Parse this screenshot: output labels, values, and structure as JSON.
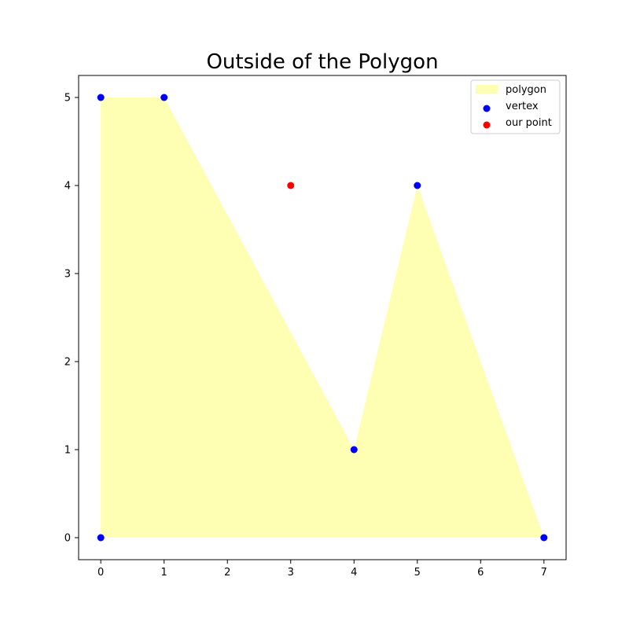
{
  "chart_data": {
    "type": "scatter",
    "title": "Outside of the Polygon",
    "xlabel": "",
    "ylabel": "",
    "xlim": [
      -0.35,
      7.35
    ],
    "ylim": [
      -0.25,
      5.25
    ],
    "x_ticks": [
      0,
      1,
      2,
      3,
      4,
      5,
      6,
      7
    ],
    "y_ticks": [
      0,
      1,
      2,
      3,
      4,
      5
    ],
    "grid": false,
    "legend_position": "top-right",
    "series": [
      {
        "name": "polygon",
        "kind": "polygon-fill",
        "color": "#ffffb3",
        "x": [
          0,
          1,
          4,
          5,
          7,
          0
        ],
        "y": [
          5,
          5,
          1,
          4,
          0,
          0
        ]
      },
      {
        "name": "vertex",
        "kind": "points",
        "color": "#0000ff",
        "x": [
          0,
          1,
          4,
          5,
          7,
          0
        ],
        "y": [
          5,
          5,
          1,
          4,
          0,
          0
        ]
      },
      {
        "name": "our point",
        "kind": "points",
        "color": "#ff0000",
        "x": [
          3
        ],
        "y": [
          4
        ]
      }
    ],
    "legend": [
      {
        "label": "polygon",
        "symbol": "patch",
        "color": "#ffffb3"
      },
      {
        "label": "vertex",
        "symbol": "dot",
        "color": "#0000ff"
      },
      {
        "label": "our point",
        "symbol": "dot",
        "color": "#ff0000"
      }
    ]
  }
}
